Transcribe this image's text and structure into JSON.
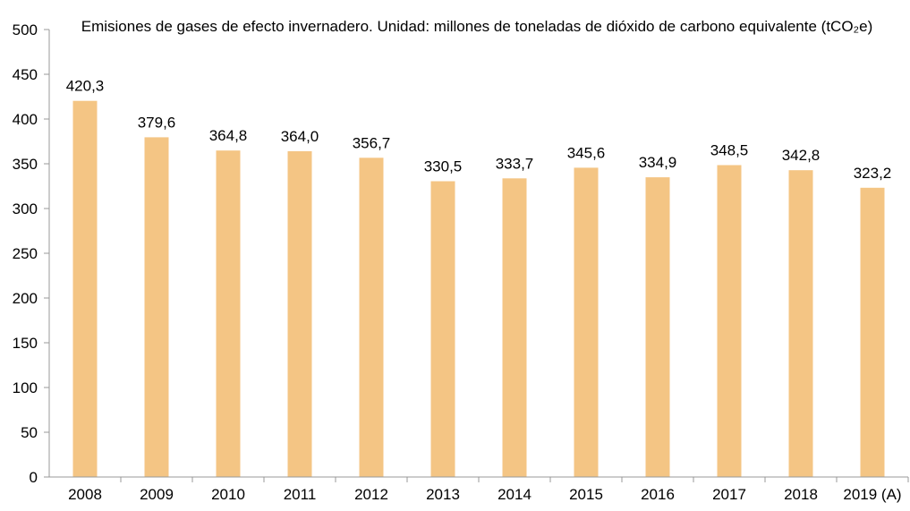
{
  "chart_data": {
    "type": "bar",
    "title": "Emisiones de gases de efecto invernadero. Unidad: millones de toneladas de dióxido de carbono equivalente (tCO₂e)",
    "xlabel": "",
    "ylabel": "",
    "categories": [
      "2008",
      "2009",
      "2010",
      "2011",
      "2012",
      "2013",
      "2014",
      "2015",
      "2016",
      "2017",
      "2018",
      "2019 (A)"
    ],
    "values": [
      420.3,
      379.6,
      364.8,
      364.0,
      356.7,
      330.5,
      333.7,
      345.6,
      334.9,
      348.5,
      342.8,
      323.2
    ],
    "data_labels": [
      "420,3",
      "379,6",
      "364,8",
      "364,0",
      "356,7",
      "330,5",
      "333,7",
      "345,6",
      "334,9",
      "348,5",
      "342,8",
      "323,2"
    ],
    "ylim": [
      0,
      500
    ],
    "yticks": [
      0,
      50,
      100,
      150,
      200,
      250,
      300,
      350,
      400,
      450,
      500
    ],
    "grid": false,
    "legend": "none",
    "bar_color": "#F4C584",
    "axis_color": "#999999"
  }
}
